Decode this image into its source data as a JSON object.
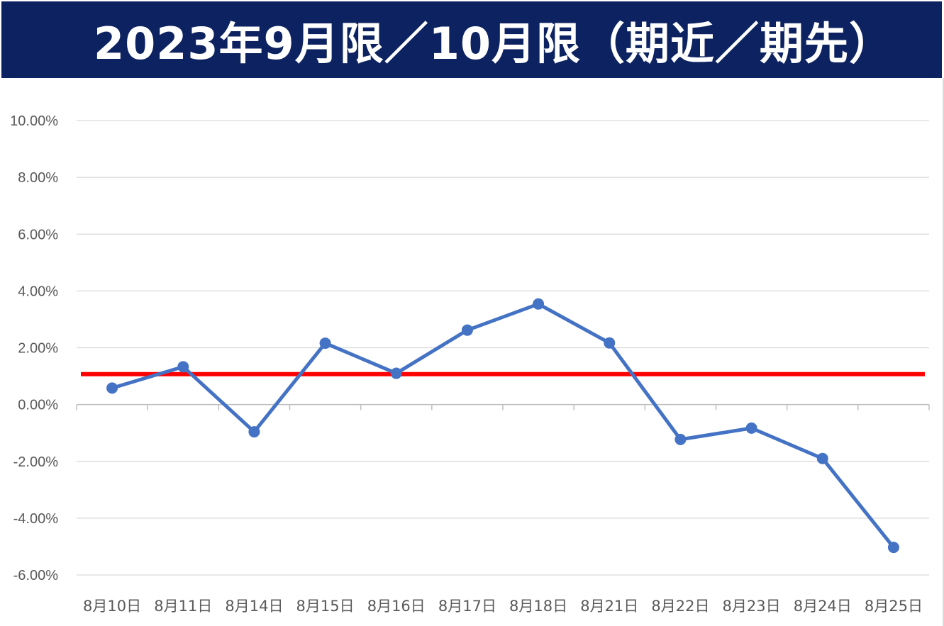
{
  "chart_data": {
    "type": "line",
    "title": "2023年9月限／10月限（期近／期先）",
    "categories": [
      "8月10日",
      "8月11日",
      "8月14日",
      "8月15日",
      "8月16日",
      "8月17日",
      "8月18日",
      "8月21日",
      "8月22日",
      "8月23日",
      "8月24日",
      "8月25日"
    ],
    "series": [
      {
        "values": [
          0.58,
          1.33,
          -0.96,
          2.16,
          1.1,
          2.62,
          3.54,
          2.17,
          -1.23,
          -0.83,
          -1.9,
          -5.03
        ],
        "color": "#4472c4"
      },
      {
        "values": [
          1.07,
          1.07,
          1.07,
          1.07,
          1.07,
          1.07,
          1.07,
          1.07,
          1.07,
          1.07,
          1.07,
          1.07
        ],
        "color": "#ff0000"
      }
    ],
    "yticks": [
      "10.00%",
      "8.00%",
      "6.00%",
      "4.00%",
      "2.00%",
      "0.00%",
      "-2.00%",
      "-4.00%",
      "-6.00%"
    ],
    "ylim": [
      -6,
      10
    ],
    "ylabel": "",
    "xlabel": "",
    "grid": true
  }
}
